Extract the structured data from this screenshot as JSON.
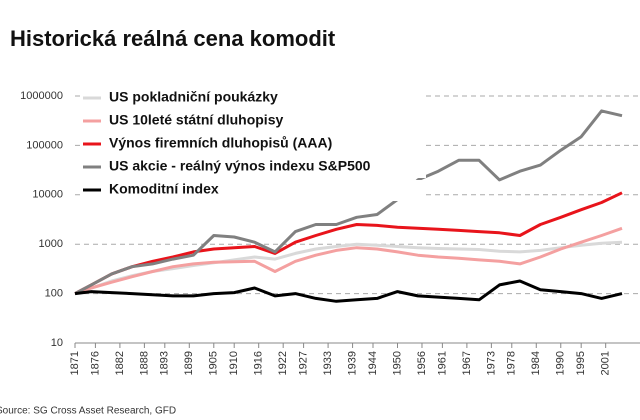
{
  "chart_data": {
    "type": "line",
    "title": "Historická reálná cena komodit",
    "source": "Source: SG Cross Asset Research, GFD",
    "x": [
      1871,
      1875,
      1880,
      1885,
      1890,
      1895,
      1900,
      1905,
      1910,
      1915,
      1920,
      1925,
      1930,
      1935,
      1940,
      1945,
      1950,
      1955,
      1960,
      1965,
      1970,
      1975,
      1980,
      1985,
      1990,
      1995,
      2000,
      2005
    ],
    "series": [
      {
        "name": "US pokladniční poukázky",
        "color": "#d9d9d9",
        "values": [
          100,
          130,
          180,
          230,
          280,
          320,
          370,
          420,
          480,
          550,
          500,
          650,
          800,
          900,
          1000,
          950,
          900,
          850,
          820,
          800,
          780,
          720,
          700,
          750,
          850,
          950,
          1050,
          1100
        ]
      },
      {
        "name": "US 10leté státní dluhopisy",
        "color": "#f4a0a0",
        "values": [
          100,
          130,
          170,
          220,
          280,
          350,
          400,
          430,
          440,
          450,
          280,
          450,
          600,
          750,
          850,
          800,
          700,
          600,
          550,
          520,
          480,
          450,
          400,
          550,
          800,
          1100,
          1500,
          2100
        ]
      },
      {
        "name": "Výnos firemních dluhopisů (AAA)",
        "color": "#e8141b",
        "values": [
          100,
          150,
          250,
          350,
          450,
          550,
          700,
          800,
          850,
          900,
          650,
          1100,
          1500,
          2000,
          2500,
          2400,
          2200,
          2100,
          2000,
          1900,
          1800,
          1700,
          1500,
          2500,
          3500,
          5000,
          7000,
          11000
        ]
      },
      {
        "name": "US akcie - reálný výnos indexu S&P500",
        "color": "#808080",
        "values": [
          100,
          150,
          250,
          350,
          400,
          500,
          600,
          1500,
          1400,
          1100,
          700,
          1800,
          2500,
          2500,
          3500,
          4000,
          8000,
          20000,
          30000,
          50000,
          50000,
          20000,
          30000,
          40000,
          80000,
          150000,
          500000,
          400000
        ]
      },
      {
        "name": "Komoditní index",
        "color": "#000000",
        "values": [
          100,
          110,
          105,
          100,
          95,
          90,
          90,
          100,
          105,
          130,
          90,
          100,
          80,
          70,
          75,
          80,
          110,
          90,
          85,
          80,
          75,
          150,
          180,
          120,
          110,
          100,
          80,
          100
        ]
      }
    ],
    "xlim": [
      1871,
      2005
    ],
    "xticks": [
      1871,
      1876,
      1882,
      1888,
      1893,
      1899,
      1905,
      1910,
      1916,
      1922,
      1927,
      1933,
      1939,
      1944,
      1950,
      1956,
      1961,
      1967,
      1973,
      1978,
      1984,
      1990,
      1995,
      2001
    ],
    "ylim": [
      10,
      1000000
    ],
    "yticks": [
      10,
      100,
      1000,
      10000,
      100000,
      1000000
    ],
    "ylog": true,
    "grid": true,
    "legend": "upper-left"
  }
}
